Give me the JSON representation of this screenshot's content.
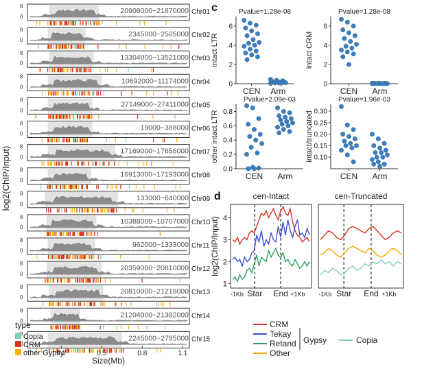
{
  "panel_labels": [
    "c",
    "d"
  ],
  "chart_data": [
    {
      "id": "chromosome-tracks",
      "type": "area",
      "ylabel": "log2(ChIP/Input)",
      "xlabel": "Size(Mb)",
      "x_ticks": [
        "0.2",
        "0.5",
        "0.8",
        "1.1"
      ],
      "y_ticks": [
        "8",
        "0"
      ],
      "tracks": [
        {
          "chr": "Chr01",
          "range": "20908000~21870000",
          "start": 0.11,
          "end": 0.48
        },
        {
          "chr": "Chr02",
          "range": "2345000~2505000",
          "start": 0.1,
          "end": 0.38
        },
        {
          "chr": "Chr03",
          "range": "13304000~13521000",
          "start": 0.11,
          "end": 0.44
        },
        {
          "chr": "Chr04",
          "range": "10692000~11174000",
          "start": 0.1,
          "end": 0.5
        },
        {
          "chr": "Chr05",
          "range": "27149000~27411000",
          "start": 0.1,
          "end": 0.43
        },
        {
          "chr": "Chr06",
          "range": "19000~388000",
          "start": 0.1,
          "end": 0.43
        },
        {
          "chr": "Chr07",
          "range": "17169000~17656000",
          "start": 0.1,
          "end": 0.6
        },
        {
          "chr": "Chr08",
          "range": "16913000~17193000",
          "start": 0.1,
          "end": 0.42
        },
        {
          "chr": "Chr09",
          "range": "133000~640000",
          "start": 0.08,
          "end": 0.62
        },
        {
          "chr": "Chr10",
          "range": "10388000~10707000",
          "start": 0.09,
          "end": 0.46
        },
        {
          "chr": "Chr11",
          "range": "962000~1333000",
          "start": 0.1,
          "end": 0.45
        },
        {
          "chr": "Chr12",
          "range": "20359000~20810000",
          "start": 0.09,
          "end": 0.5
        },
        {
          "chr": "Chr13",
          "range": "20810000~21218000",
          "start": 0.11,
          "end": 0.51
        },
        {
          "chr": "Chr14",
          "range": "21204000~21392000",
          "start": 0.12,
          "end": 0.34
        },
        {
          "chr": "Chr15",
          "range": "2245000~2785000",
          "start": 0.1,
          "end": 0.65
        }
      ],
      "legend": {
        "title": "type",
        "items": [
          {
            "label": "Copia",
            "color": "#7fcdbb"
          },
          {
            "label": "CRM",
            "color": "#d7301f"
          },
          {
            "label": "other Gypsy",
            "color": "#fdb515"
          }
        ]
      }
    },
    {
      "id": "intact-ltr",
      "type": "scatter",
      "title": "Pvalue=1.28e-08",
      "ylabel": "intact LTR",
      "categories": [
        "CEN",
        "Arm"
      ],
      "ylim": [
        0,
        7
      ],
      "y_ticks": [
        0,
        2,
        4,
        6
      ],
      "points": {
        "CEN": [
          6.6,
          6.3,
          6.1,
          5.8,
          5.5,
          5.2,
          5.0,
          4.6,
          4.3,
          4.2,
          4.0,
          3.9,
          3.6,
          3.4,
          3.2,
          3.0,
          2.8,
          2.5
        ],
        "Arm": [
          0.45,
          0.35,
          0.3,
          0.25,
          0.2,
          0.18,
          0.15,
          0.12,
          0.1,
          0.08,
          0.05,
          0.03
        ]
      },
      "color": "#3b7fbf"
    },
    {
      "id": "intact-crm",
      "type": "scatter",
      "title": "Pvalue=1.28e-08",
      "ylabel": "intact CRM",
      "categories": [
        "CEN",
        "Arm"
      ],
      "ylim": [
        0,
        7
      ],
      "y_ticks": [
        0,
        2,
        4,
        6
      ],
      "points": {
        "CEN": [
          6.7,
          6.4,
          6.0,
          5.6,
          5.3,
          5.0,
          4.7,
          4.4,
          4.1,
          3.9,
          3.7,
          3.5,
          3.3,
          3.1,
          2.8,
          2.0
        ],
        "Arm": [
          0.05,
          0.05,
          0.04,
          0.04,
          0.03,
          0.03,
          0.02,
          0.02,
          0.01,
          0.0,
          0.0,
          0.0
        ]
      },
      "color": "#3b7fbf"
    },
    {
      "id": "other-intact-ltr",
      "type": "scatter",
      "title": "Pvalue=2.09e-03",
      "ylabel": "other intact LTR",
      "categories": [
        "CEN",
        "Arm"
      ],
      "ylim": [
        0,
        0.9
      ],
      "y_ticks": [
        0.0,
        0.2,
        0.4,
        0.6,
        0.8
      ],
      "points": {
        "CEN": [
          0.88,
          0.85,
          0.7,
          0.62,
          0.55,
          0.48,
          0.45,
          0.4,
          0.35,
          0.3,
          0.22,
          0.2,
          0.02,
          0.01,
          0.0,
          0.0
        ],
        "Arm": [
          0.85,
          0.8,
          0.78,
          0.74,
          0.72,
          0.7,
          0.68,
          0.66,
          0.64,
          0.62,
          0.6,
          0.58,
          0.55,
          0.52,
          0.5
        ]
      },
      "color": "#3b7fbf"
    },
    {
      "id": "intact-truncated",
      "type": "scatter",
      "title": "Pvalue=1.96e-03",
      "ylabel": "intact/truncated",
      "categories": [
        "CEN",
        "Arm"
      ],
      "ylim": [
        0.05,
        0.33
      ],
      "y_ticks": [
        0.1,
        0.15,
        0.2,
        0.25,
        0.3
      ],
      "points": {
        "CEN": [
          0.32,
          0.24,
          0.22,
          0.2,
          0.19,
          0.18,
          0.17,
          0.16,
          0.15,
          0.15,
          0.14,
          0.13,
          0.11,
          0.08
        ],
        "Arm": [
          0.2,
          0.18,
          0.16,
          0.15,
          0.14,
          0.13,
          0.12,
          0.12,
          0.11,
          0.1,
          0.1,
          0.09,
          0.08,
          0.07,
          0.07,
          0.06
        ]
      },
      "color": "#3b7fbf"
    },
    {
      "id": "cen-intact",
      "type": "line",
      "title": "cen-Intact",
      "ylabel": "log2(ChIP/Input)",
      "ylim": [
        0.8,
        4.6
      ],
      "y_ticks": [
        1,
        2,
        3,
        4
      ],
      "x_ticks": [
        "-1Kb",
        "Star",
        "End",
        "+1Kb"
      ],
      "series": [
        {
          "name": "CRM",
          "color": "#d7301f",
          "values": [
            3.0,
            2.9,
            3.1,
            2.8,
            3.0,
            3.1,
            3.0,
            3.3,
            3.4,
            3.3,
            3.6,
            3.9,
            4.2,
            4.1,
            4.3,
            4.0,
            4.2,
            4.4,
            4.1,
            3.9,
            4.3,
            4.5,
            4.2,
            4.1,
            4.4,
            3.8,
            3.4,
            3.2,
            3.1,
            2.9,
            3.0,
            3.1,
            2.9
          ]
        },
        {
          "name": "Tekay",
          "color": "#3a4fd6",
          "values": [
            2.1,
            2.2,
            2.0,
            2.1,
            1.8,
            2.2,
            2.0,
            2.1,
            2.4,
            2.5,
            3.2,
            2.9,
            3.4,
            2.7,
            3.0,
            2.8,
            3.3,
            3.0,
            2.9,
            3.6,
            3.1,
            3.8,
            3.2,
            3.9,
            3.4,
            3.1,
            3.6,
            3.9,
            3.2,
            3.3,
            3.1,
            3.5,
            3.2
          ]
        },
        {
          "name": "Retand",
          "color": "#2e9e5b",
          "values": [
            1.2,
            1.3,
            1.1,
            1.4,
            1.2,
            1.3,
            1.6,
            1.7,
            1.5,
            1.9,
            2.3,
            1.8,
            2.2,
            2.1,
            2.0,
            2.5,
            2.2,
            2.4,
            2.6,
            2.3,
            2.2,
            2.4,
            2.0,
            2.1,
            1.9,
            1.8,
            2.1,
            1.9,
            1.7,
            1.8,
            2.0,
            1.8,
            2.0
          ]
        },
        {
          "name": "Other",
          "color": "#f5a800",
          "values": []
        }
      ]
    },
    {
      "id": "cen-truncated",
      "type": "line",
      "title": "cen-Truncated",
      "x_ticks": [
        "-1Kb",
        "Star",
        "End",
        "+1Kb"
      ],
      "series": [
        {
          "name": "CRM",
          "color": "#d7301f",
          "values": [
            3.0,
            3.2,
            3.4,
            3.3,
            3.1,
            3.0,
            3.2,
            3.5,
            3.6,
            3.5,
            3.4,
            3.3,
            3.5,
            3.6,
            3.4,
            3.2,
            3.0,
            3.1,
            3.3,
            3.4,
            3.3
          ]
        },
        {
          "name": "Other",
          "color": "#f5a800",
          "values": [
            2.3,
            2.4,
            2.6,
            2.5,
            2.3,
            2.2,
            2.4,
            2.6,
            2.7,
            2.6,
            2.5,
            2.4,
            2.6,
            2.5,
            2.3,
            2.2,
            2.3,
            2.5,
            2.6,
            2.5,
            2.3
          ]
        },
        {
          "name": "Copia",
          "color": "#7fcdbb",
          "values": [
            1.4,
            1.6,
            1.5,
            1.7,
            1.6,
            1.4,
            1.5,
            1.7,
            1.8,
            1.6,
            1.7,
            1.9,
            1.8,
            2.0,
            1.9,
            2.1,
            1.9,
            2.0,
            1.8,
            2.0,
            1.9
          ]
        }
      ]
    }
  ],
  "legend_d": {
    "group_label": "Gypsy",
    "items": [
      {
        "label": "CRM",
        "color": "#d7301f"
      },
      {
        "label": "Tekay",
        "color": "#3a4fd6"
      },
      {
        "label": "Retand",
        "color": "#2e9e5b"
      },
      {
        "label": "Other",
        "color": "#f5a800"
      }
    ],
    "extra": {
      "label": "Copia",
      "color": "#7fcdbb"
    }
  }
}
